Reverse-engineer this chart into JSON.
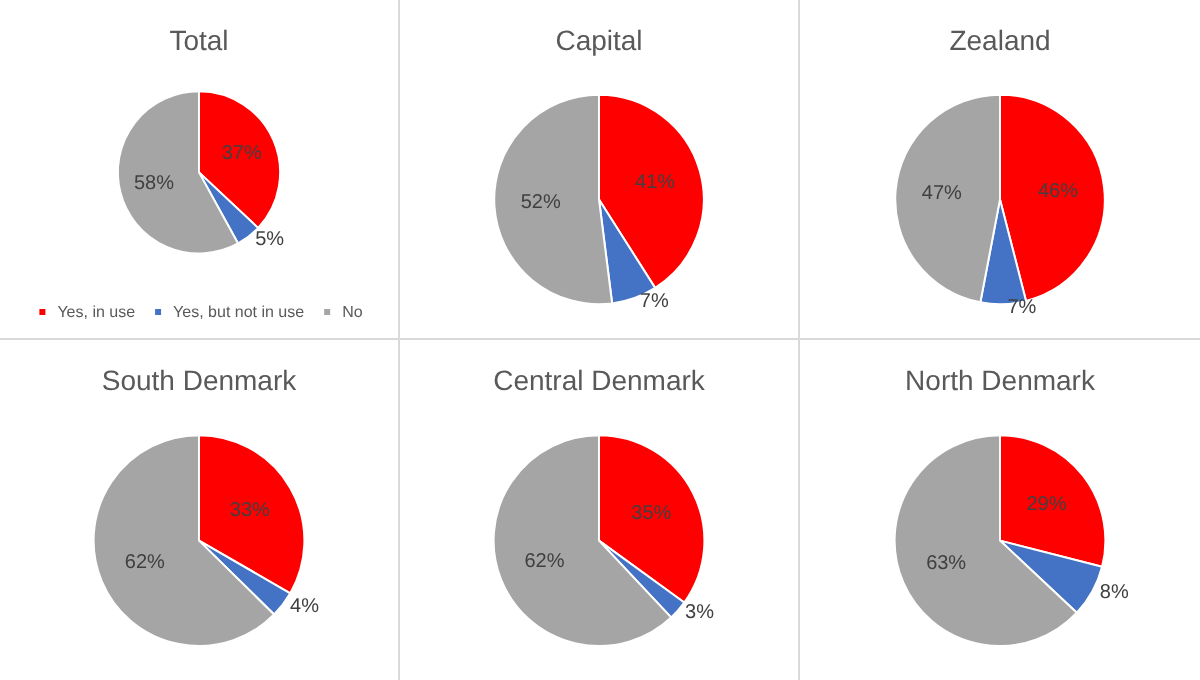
{
  "chart_data": [
    {
      "type": "pie",
      "title": "Total",
      "categories": [
        "Yes, in use",
        "Yes, but not in use",
        "No"
      ],
      "values": [
        37,
        5,
        58
      ],
      "value_labels": [
        "37%",
        "5%",
        "58%"
      ],
      "colors": [
        "#ff0000",
        "#4472c4",
        "#a5a5a5"
      ],
      "legend": "bottom"
    },
    {
      "type": "pie",
      "title": "Capital",
      "values": [
        41,
        7,
        52
      ],
      "value_labels": [
        "41%",
        "7%",
        "52%"
      ],
      "colors": [
        "#ff0000",
        "#4472c4",
        "#a5a5a5"
      ]
    },
    {
      "type": "pie",
      "title": "Zealand",
      "values": [
        46,
        7,
        47
      ],
      "value_labels": [
        "46%",
        "7%",
        "47%"
      ],
      "colors": [
        "#ff0000",
        "#4472c4",
        "#a5a5a5"
      ]
    },
    {
      "type": "pie",
      "title": "South Denmark",
      "values": [
        33,
        4,
        62
      ],
      "value_labels": [
        "33%",
        "4%",
        "62%"
      ],
      "colors": [
        "#ff0000",
        "#4472c4",
        "#a5a5a5"
      ]
    },
    {
      "type": "pie",
      "title": "Central Denmark",
      "values": [
        35,
        3,
        62
      ],
      "value_labels": [
        "35%",
        "3%",
        "62%"
      ],
      "colors": [
        "#ff0000",
        "#4472c4",
        "#a5a5a5"
      ]
    },
    {
      "type": "pie",
      "title": "North Denmark",
      "values": [
        29,
        8,
        63
      ],
      "value_labels": [
        "29%",
        "8%",
        "63%"
      ],
      "colors": [
        "#ff0000",
        "#4472c4",
        "#a5a5a5"
      ]
    }
  ]
}
